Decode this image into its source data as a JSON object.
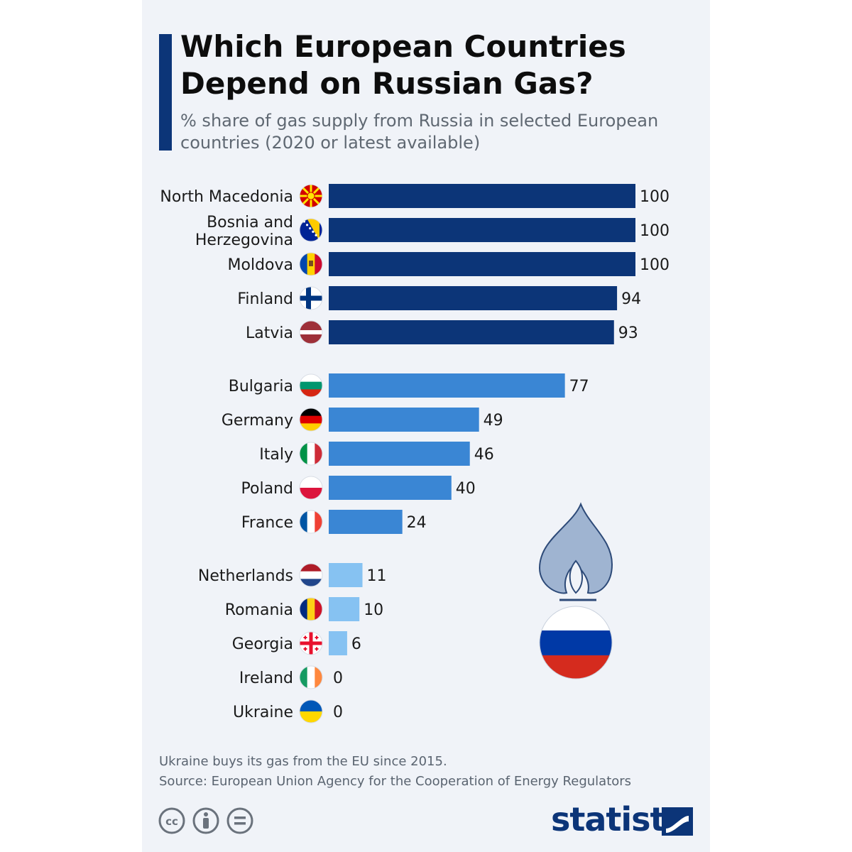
{
  "header": {
    "title": "Which European Countries Depend on Russian Gas?",
    "subtitle": "% share of gas supply from Russia in selected European countries (2020 or latest available)"
  },
  "footer": {
    "note": "Ukraine buys its gas from the EU since 2015.",
    "source": "Source: European Union Agency for the Cooperation of Energy Regulators",
    "brand": "statista",
    "license_icons": [
      "cc-icon",
      "attribution-icon",
      "no-derivatives-icon"
    ]
  },
  "colors": {
    "high": "#0c3578",
    "medium": "#3a86d4",
    "low": "#86c2f2",
    "accent": "#0c3578"
  },
  "chart_data": {
    "type": "bar",
    "orientation": "horizontal",
    "title": "Which European Countries Depend on Russian Gas?",
    "subtitle": "% share of gas supply from Russia in selected European countries (2020 or latest available)",
    "xlim": [
      0,
      100
    ],
    "grid": false,
    "legend": "none",
    "categories": [
      "North Macedonia",
      "Bosnia and Herzegovina",
      "Moldova",
      "Finland",
      "Latvia",
      "Bulgaria",
      "Germany",
      "Italy",
      "Poland",
      "France",
      "Netherlands",
      "Romania",
      "Georgia",
      "Ireland",
      "Ukraine"
    ],
    "values": [
      100,
      100,
      100,
      94,
      93,
      77,
      49,
      46,
      40,
      24,
      11,
      10,
      6,
      0,
      0
    ],
    "groups": [
      "high",
      "high",
      "high",
      "high",
      "high",
      "medium",
      "medium",
      "medium",
      "medium",
      "medium",
      "low",
      "low",
      "low",
      "low",
      "low"
    ],
    "flag_icons": [
      "north-macedonia-flag-icon",
      "bosnia-flag-icon",
      "moldova-flag-icon",
      "finland-flag-icon",
      "latvia-flag-icon",
      "bulgaria-flag-icon",
      "germany-flag-icon",
      "italy-flag-icon",
      "poland-flag-icon",
      "france-flag-icon",
      "netherlands-flag-icon",
      "romania-flag-icon",
      "georgia-flag-icon",
      "ireland-flag-icon",
      "ukraine-flag-icon"
    ],
    "illustration": "gas-flame-with-russian-flag-icon"
  }
}
